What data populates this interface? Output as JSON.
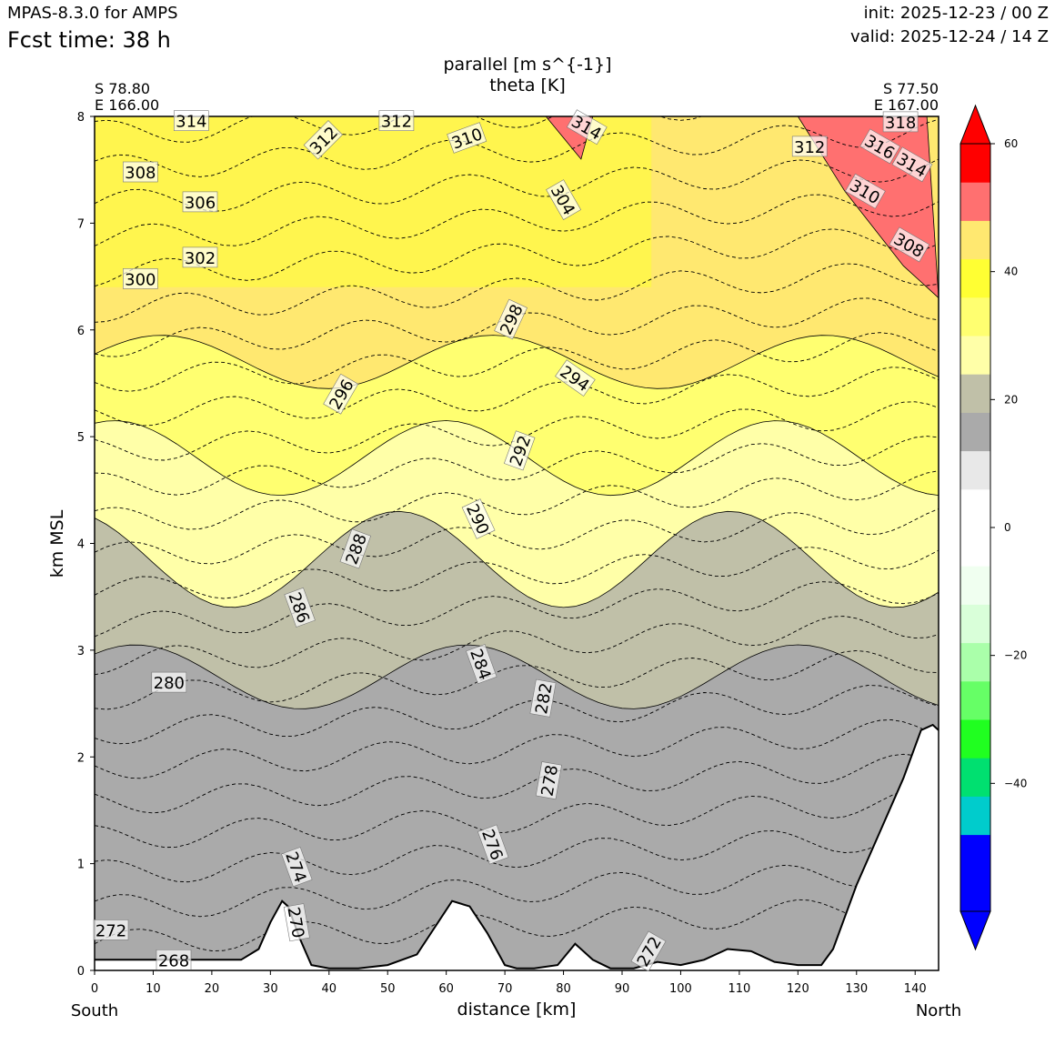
{
  "header": {
    "model": "MPAS-8.3.0 for AMPS",
    "forecast_time": "Fcst time:   38 h",
    "init": "init: 2025-12-23 / 00 Z",
    "valid": "valid: 2025-12-24 / 14 Z"
  },
  "chart_data": {
    "type": "cross-section",
    "title": "parallel [m s^{-1}]",
    "subtitle": "theta [K]",
    "xlabel": "distance [km]",
    "ylabel": "km MSL",
    "xlim": [
      0,
      144
    ],
    "ylim": [
      0,
      8
    ],
    "x_ticks": [
      0,
      10,
      20,
      30,
      40,
      50,
      60,
      70,
      80,
      90,
      100,
      110,
      120,
      130,
      140
    ],
    "y_ticks": [
      0,
      1,
      2,
      3,
      4,
      5,
      6,
      7,
      8
    ],
    "start_point": {
      "lat": "S 78.80",
      "lon": "E 166.00"
    },
    "end_point": {
      "lat": "S 77.50",
      "lon": "E 167.00"
    },
    "left_end_label": "South",
    "right_end_label": "North",
    "shaded_bands": [
      {
        "top_km": 8.0,
        "colors": [
          "#ffea70",
          "#ffff33"
        ]
      },
      {
        "top_km": 5.7,
        "color": "#ffff70"
      },
      {
        "top_km": 4.8,
        "color": "#ffffa8"
      },
      {
        "top_km": 3.85,
        "color": "#c0c0a8"
      },
      {
        "top_km": 2.75,
        "color": "#aaaaaa"
      },
      {
        "top_km": 0.15,
        "color": "#eaeaea"
      }
    ],
    "theta_contour_labels": [
      {
        "value": 314,
        "x_km": 16.5,
        "z_km": 7.96,
        "angle": 0
      },
      {
        "value": 312,
        "x_km": 39.0,
        "z_km": 7.78,
        "angle": -45
      },
      {
        "value": 312,
        "x_km": 51.5,
        "z_km": 7.96,
        "angle": 0
      },
      {
        "value": 310,
        "x_km": 63.5,
        "z_km": 7.8,
        "angle": -20
      },
      {
        "value": 314,
        "x_km": 84.0,
        "z_km": 7.9,
        "angle": 30
      },
      {
        "value": 304,
        "x_km": 80.0,
        "z_km": 7.22,
        "angle": 60
      },
      {
        "value": 308,
        "x_km": 7.8,
        "z_km": 7.48,
        "angle": 0
      },
      {
        "value": 306,
        "x_km": 18.0,
        "z_km": 7.2,
        "angle": 0
      },
      {
        "value": 302,
        "x_km": 18.0,
        "z_km": 6.68,
        "angle": 0
      },
      {
        "value": 300,
        "x_km": 7.8,
        "z_km": 6.48,
        "angle": 0
      },
      {
        "value": 298,
        "x_km": 71.0,
        "z_km": 6.1,
        "angle": -65
      },
      {
        "value": 294,
        "x_km": 82.0,
        "z_km": 5.55,
        "angle": 35
      },
      {
        "value": 296,
        "x_km": 42.0,
        "z_km": 5.4,
        "angle": -60
      },
      {
        "value": 292,
        "x_km": 72.5,
        "z_km": 4.87,
        "angle": -70
      },
      {
        "value": 290,
        "x_km": 65.5,
        "z_km": 4.23,
        "angle": 65
      },
      {
        "value": 288,
        "x_km": 44.5,
        "z_km": 3.95,
        "angle": -70
      },
      {
        "value": 286,
        "x_km": 35.0,
        "z_km": 3.4,
        "angle": 70
      },
      {
        "value": 284,
        "x_km": 66.0,
        "z_km": 2.87,
        "angle": 70
      },
      {
        "value": 282,
        "x_km": 76.5,
        "z_km": 2.55,
        "angle": -80
      },
      {
        "value": 280,
        "x_km": 12.7,
        "z_km": 2.7,
        "angle": 0
      },
      {
        "value": 278,
        "x_km": 77.5,
        "z_km": 1.78,
        "angle": -80
      },
      {
        "value": 276,
        "x_km": 68.0,
        "z_km": 1.18,
        "angle": 70
      },
      {
        "value": 274,
        "x_km": 34.5,
        "z_km": 0.97,
        "angle": 70
      },
      {
        "value": 270,
        "x_km": 34.5,
        "z_km": 0.45,
        "angle": 80
      },
      {
        "value": 272,
        "x_km": 2.8,
        "z_km": 0.38,
        "angle": 0
      },
      {
        "value": 268,
        "x_km": 13.5,
        "z_km": 0.1,
        "angle": 0
      },
      {
        "value": 272,
        "x_km": 94.5,
        "z_km": 0.18,
        "angle": -60
      },
      {
        "value": 312,
        "x_km": 122.0,
        "z_km": 7.72,
        "angle": 0
      },
      {
        "value": 316,
        "x_km": 134.0,
        "z_km": 7.72,
        "angle": 30
      },
      {
        "value": 318,
        "x_km": 137.5,
        "z_km": 7.95,
        "angle": 0
      },
      {
        "value": 314,
        "x_km": 139.5,
        "z_km": 7.55,
        "angle": 30
      },
      {
        "value": 310,
        "x_km": 131.5,
        "z_km": 7.3,
        "angle": 30
      },
      {
        "value": 308,
        "x_km": 139.0,
        "z_km": 6.8,
        "angle": 30
      }
    ],
    "colorbar": {
      "min": -60,
      "max": 60,
      "step": 5,
      "tick_values": [
        -40,
        -20,
        0,
        20,
        40,
        60
      ],
      "tick_labels": [
        "−40",
        "−20",
        "0",
        "20",
        "40",
        "60"
      ],
      "colors": [
        "#0000ff",
        "#0000ff",
        "#00cccc",
        "#00e070",
        "#20ff20",
        "#66ff66",
        "#aaffaa",
        "#d9ffd9",
        "#f0fff0",
        "#ffffff",
        "#ffffff",
        "#e8e8e8",
        "#aaaaaa",
        "#c0c0a8",
        "#ffffa8",
        "#ffff70",
        "#ffff33",
        "#ffe870",
        "#ff7070",
        "#ff0000"
      ],
      "under_color": "#0000ff",
      "over_color": "#ff0000"
    },
    "terrain_height_km": [
      [
        0,
        0.1
      ],
      [
        5,
        0.1
      ],
      [
        10,
        0.1
      ],
      [
        15,
        0.1
      ],
      [
        20,
        0.1
      ],
      [
        25,
        0.1
      ],
      [
        28,
        0.2
      ],
      [
        30,
        0.45
      ],
      [
        32,
        0.65
      ],
      [
        33,
        0.6
      ],
      [
        35,
        0.3
      ],
      [
        37,
        0.05
      ],
      [
        40,
        0.02
      ],
      [
        45,
        0.02
      ],
      [
        50,
        0.05
      ],
      [
        55,
        0.15
      ],
      [
        58,
        0.4
      ],
      [
        61,
        0.65
      ],
      [
        64,
        0.6
      ],
      [
        67,
        0.35
      ],
      [
        70,
        0.05
      ],
      [
        72,
        0.02
      ],
      [
        75,
        0.02
      ],
      [
        79,
        0.05
      ],
      [
        82,
        0.25
      ],
      [
        85,
        0.1
      ],
      [
        88,
        0.02
      ],
      [
        92,
        0.02
      ],
      [
        96,
        0.08
      ],
      [
        100,
        0.05
      ],
      [
        104,
        0.1
      ],
      [
        108,
        0.2
      ],
      [
        112,
        0.18
      ],
      [
        116,
        0.08
      ],
      [
        120,
        0.05
      ],
      [
        124,
        0.05
      ],
      [
        126,
        0.2
      ],
      [
        130,
        0.8
      ],
      [
        134,
        1.3
      ],
      [
        138,
        1.8
      ],
      [
        141,
        2.25
      ],
      [
        143,
        2.3
      ],
      [
        144,
        2.25
      ]
    ]
  }
}
